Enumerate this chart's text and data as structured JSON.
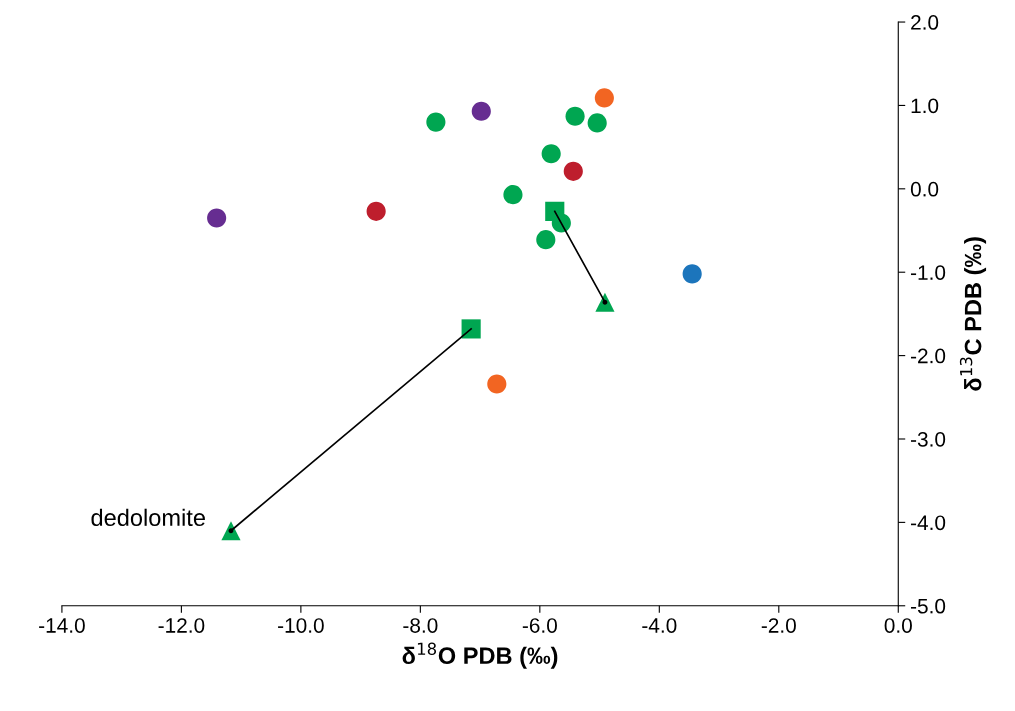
{
  "chart_data": {
    "type": "scatter",
    "xlabel": "δ$^{18}$O PDB (‰)",
    "ylabel": "δ$^{13}$C PDB (‰)",
    "xlim": [
      -14,
      0
    ],
    "ylim": [
      -5,
      2
    ],
    "xticks": [
      {
        "value": -14,
        "label": "-14.0"
      },
      {
        "value": -12,
        "label": "-12.0"
      },
      {
        "value": -10,
        "label": "-10.0"
      },
      {
        "value": -8,
        "label": "-8.0"
      },
      {
        "value": -6,
        "label": "-6.0"
      },
      {
        "value": -4,
        "label": "-4.0"
      },
      {
        "value": -2,
        "label": "-2.0"
      },
      {
        "value": 0,
        "label": "0.0"
      }
    ],
    "yticks": [
      {
        "value": -5,
        "label": "-5.0"
      },
      {
        "value": -4,
        "label": "-4.0"
      },
      {
        "value": -3,
        "label": "-3.0"
      },
      {
        "value": -2,
        "label": "-2.0"
      },
      {
        "value": -1,
        "label": "-1.0"
      },
      {
        "value": 0,
        "label": "0.0"
      },
      {
        "value": 1,
        "label": "1.0"
      },
      {
        "value": 2,
        "label": "2.0"
      }
    ],
    "grid": false,
    "legend": false,
    "series": [
      {
        "type": "line",
        "color": "#000000",
        "marker": "none",
        "x": [
          -5.75,
          -4.91
        ],
        "values": [
          -0.27,
          -1.36
        ]
      },
      {
        "type": "line",
        "color": "#000000",
        "marker": "none",
        "x": [
          -7.15,
          -11.17
        ],
        "values": [
          -1.68,
          -4.1
        ]
      },
      {
        "color": "#00a651",
        "marker": "circle",
        "x": [
          -7.74,
          -5.41,
          -5.04,
          -5.81,
          -6.45,
          -5.64,
          -5.9
        ],
        "values": [
          0.8,
          0.87,
          0.79,
          0.42,
          -0.07,
          -0.41,
          -0.61
        ]
      },
      {
        "color": "#00a651",
        "marker": "square",
        "x": [
          -5.75,
          -7.15
        ],
        "values": [
          -0.27,
          -1.68
        ]
      },
      {
        "color": "#00a651",
        "marker": "triangle",
        "x": [
          -4.91,
          -11.17
        ],
        "values": [
          -1.36,
          -4.1
        ]
      },
      {
        "color": "#662d91",
        "marker": "circle",
        "x": [
          -6.98,
          -11.41
        ],
        "values": [
          0.93,
          -0.35
        ]
      },
      {
        "color": "#f26522",
        "marker": "circle",
        "x": [
          -4.92,
          -6.72
        ],
        "values": [
          1.09,
          -2.34
        ]
      },
      {
        "color": "#be1e2d",
        "marker": "circle",
        "x": [
          -5.44,
          -8.74
        ],
        "values": [
          0.21,
          -0.27
        ]
      },
      {
        "color": "#1c75bc",
        "marker": "circle",
        "x": [
          -3.45
        ],
        "values": [
          -1.02
        ]
      }
    ],
    "annotations": [
      {
        "text": "dedolomite",
        "x": -11.17,
        "y": -4.1
      }
    ]
  }
}
